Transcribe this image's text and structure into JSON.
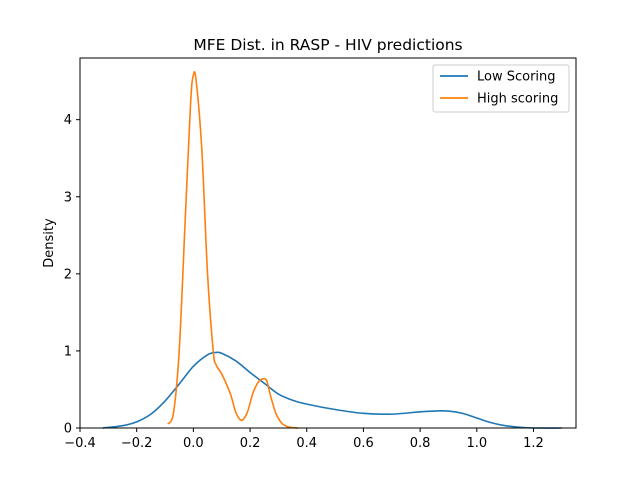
{
  "chart_data": {
    "type": "line",
    "title": "MFE Dist. in RASP - HIV predictions",
    "xlabel": "",
    "ylabel": "Density",
    "xlim": [
      -0.4,
      1.35
    ],
    "ylim": [
      0,
      4.8
    ],
    "xticks": [
      -0.4,
      -0.2,
      0.0,
      0.2,
      0.4,
      0.6,
      0.8,
      1.0,
      1.2
    ],
    "xtick_labels": [
      "−0.4",
      "−0.2",
      "0.0",
      "0.2",
      "0.4",
      "0.6",
      "0.8",
      "1.0",
      "1.2"
    ],
    "yticks": [
      0,
      1,
      2,
      3,
      4
    ],
    "ytick_labels": [
      "0",
      "1",
      "2",
      "3",
      "4"
    ],
    "legend_position": "top-right",
    "series": [
      {
        "name": "Low Scoring",
        "color": "#1f77b4",
        "x": [
          -0.32,
          -0.25,
          -0.2,
          -0.15,
          -0.1,
          -0.05,
          0.0,
          0.05,
          0.08,
          0.1,
          0.15,
          0.2,
          0.25,
          0.3,
          0.35,
          0.4,
          0.5,
          0.6,
          0.7,
          0.8,
          0.85,
          0.9,
          0.95,
          1.0,
          1.05,
          1.1,
          1.15,
          1.2,
          1.3
        ],
        "y": [
          0.0,
          0.03,
          0.08,
          0.18,
          0.35,
          0.57,
          0.8,
          0.95,
          0.98,
          0.97,
          0.87,
          0.72,
          0.58,
          0.44,
          0.36,
          0.31,
          0.24,
          0.19,
          0.18,
          0.21,
          0.22,
          0.22,
          0.19,
          0.13,
          0.07,
          0.03,
          0.01,
          0.0,
          0.0
        ]
      },
      {
        "name": "High scoring",
        "color": "#ff7f0e",
        "x": [
          -0.09,
          -0.07,
          -0.05,
          -0.03,
          -0.01,
          0.0,
          0.01,
          0.03,
          0.05,
          0.07,
          0.08,
          0.1,
          0.13,
          0.15,
          0.17,
          0.19,
          0.21,
          0.23,
          0.25,
          0.26,
          0.27,
          0.29,
          0.31,
          0.33,
          0.35,
          0.37
        ],
        "y": [
          0.05,
          0.2,
          1.0,
          2.6,
          4.2,
          4.58,
          4.5,
          3.6,
          2.0,
          1.0,
          0.82,
          0.7,
          0.45,
          0.2,
          0.1,
          0.2,
          0.45,
          0.6,
          0.64,
          0.6,
          0.45,
          0.2,
          0.07,
          0.02,
          0.005,
          0.0
        ]
      }
    ]
  }
}
